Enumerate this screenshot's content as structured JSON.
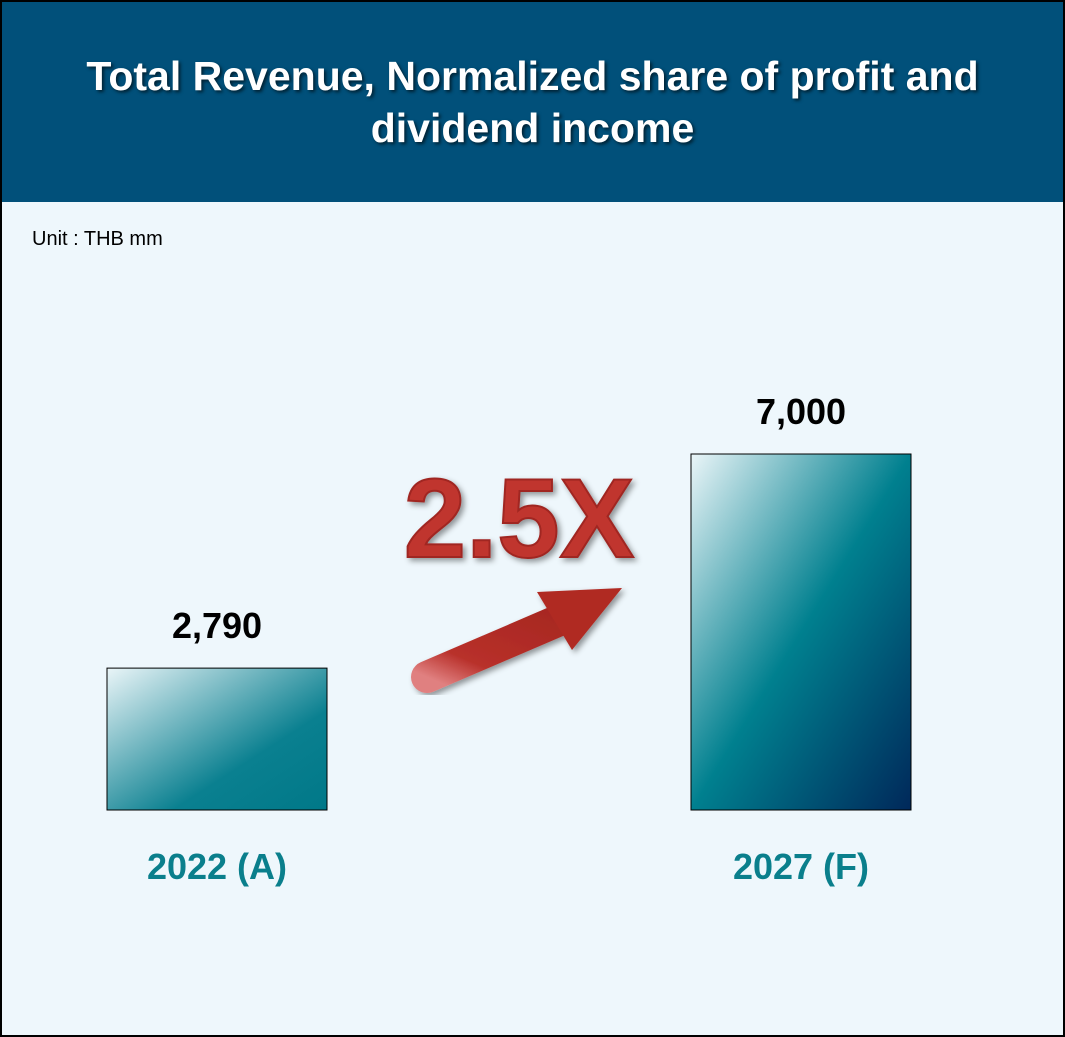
{
  "chart_data": {
    "type": "bar",
    "title": "Total Revenue, Normalized share of profit and dividend income",
    "subtitle": "Unit : THB mm",
    "categories": [
      "2022 (A)",
      "2027 (F)"
    ],
    "values": [
      2790,
      7000
    ],
    "value_labels": [
      "2,790",
      "7,000"
    ],
    "annotation": "2.5X"
  }
}
